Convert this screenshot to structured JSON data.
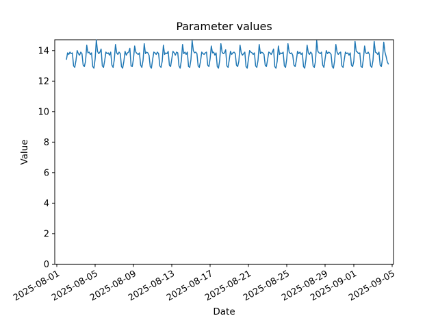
{
  "figure": {
    "title": "Parameter values",
    "xlabel": "Date",
    "ylabel": "Value",
    "background_color": "#ffffff"
  },
  "chart_data": {
    "type": "line",
    "title": "Parameter values",
    "xlabel": "Date",
    "ylabel": "Value",
    "grid": false,
    "legend": "none",
    "line_color": "#1f77b4",
    "line_width": 1.5,
    "ylim": [
      0,
      14.71
    ],
    "xlim_days_from_2025_08_01": [
      -0.214,
      35.143
    ],
    "yticks": [
      0,
      2,
      4,
      6,
      8,
      10,
      12,
      14
    ],
    "xticks": [
      {
        "day": 0,
        "label": "2025-08-01"
      },
      {
        "day": 4,
        "label": "2025-08-05"
      },
      {
        "day": 8,
        "label": "2025-08-09"
      },
      {
        "day": 12,
        "label": "2025-08-13"
      },
      {
        "day": 16,
        "label": "2025-08-17"
      },
      {
        "day": 20,
        "label": "2025-08-21"
      },
      {
        "day": 24,
        "label": "2025-08-25"
      },
      {
        "day": 28,
        "label": "2025-08-29"
      },
      {
        "day": 31,
        "label": "2025-09-01"
      },
      {
        "day": 35,
        "label": "2025-09-05"
      }
    ],
    "x_unit": "days since 2025-08-01",
    "x_start_day": 1.0,
    "x_step_days": 0.125,
    "values": [
      13.4,
      13.85,
      13.75,
      13.9,
      13.8,
      13.85,
      13.0,
      12.9,
      13.35,
      14.0,
      13.8,
      13.7,
      13.9,
      13.8,
      13.05,
      12.95,
      13.3,
      14.35,
      13.85,
      13.9,
      13.75,
      13.85,
      12.95,
      12.85,
      13.45,
      14.7,
      13.95,
      13.8,
      13.9,
      14.1,
      13.0,
      12.9,
      13.35,
      13.9,
      13.8,
      13.85,
      13.7,
      13.9,
      13.05,
      12.9,
      13.4,
      14.4,
      13.85,
      13.75,
      13.9,
      13.8,
      12.95,
      12.85,
      13.3,
      13.95,
      13.7,
      13.85,
      13.9,
      14.15,
      13.0,
      12.95,
      13.45,
      14.3,
      13.9,
      13.8,
      13.75,
      13.85,
      13.05,
      12.9,
      13.35,
      14.45,
      13.8,
      13.9,
      13.85,
      13.7,
      12.95,
      12.85,
      13.4,
      13.9,
      13.85,
      13.75,
      13.9,
      13.8,
      13.0,
      12.9,
      13.3,
      14.35,
      13.75,
      13.85,
      13.8,
      13.95,
      13.05,
      12.95,
      13.45,
      13.95,
      13.85,
      13.7,
      13.9,
      13.85,
      13.0,
      12.85,
      13.35,
      14.4,
      13.8,
      13.9,
      13.75,
      13.9,
      12.95,
      12.9,
      13.4,
      14.65,
      14.0,
      13.85,
      13.9,
      13.8,
      13.0,
      12.9,
      13.3,
      13.9,
      13.8,
      13.75,
      13.85,
      13.9,
      13.05,
      12.95,
      13.45,
      14.3,
      13.85,
      13.9,
      13.7,
      13.85,
      12.95,
      12.85,
      13.35,
      14.45,
      13.9,
      13.8,
      13.85,
      14.05,
      13.0,
      12.9,
      13.4,
      13.95,
      13.75,
      13.85,
      13.9,
      13.8,
      13.05,
      12.95,
      13.3,
      14.35,
      13.85,
      13.7,
      13.8,
      13.9,
      12.95,
      12.85,
      13.45,
      14.0,
      13.9,
      13.85,
      13.75,
      13.85,
      13.0,
      12.9,
      13.35,
      14.4,
      13.8,
      13.9,
      13.85,
      13.75,
      13.05,
      12.95,
      13.4,
      13.9,
      13.85,
      13.75,
      13.9,
      14.1,
      12.95,
      12.85,
      13.3,
      14.3,
      13.75,
      13.85,
      13.8,
      13.9,
      13.0,
      12.9,
      13.45,
      14.45,
      13.9,
      13.8,
      13.85,
      13.7,
      13.05,
      12.95,
      13.35,
      13.95,
      13.8,
      13.9,
      13.75,
      13.85,
      12.95,
      12.85,
      13.4,
      14.35,
      13.85,
      13.75,
      13.9,
      13.8,
      13.0,
      12.9,
      13.3,
      14.65,
      13.95,
      13.85,
      13.8,
      13.9,
      13.05,
      12.9,
      13.45,
      14.0,
      13.8,
      13.9,
      13.85,
      13.75,
      12.95,
      12.85,
      13.35,
      14.4,
      13.9,
      13.75,
      13.85,
      13.9,
      13.0,
      12.9,
      13.4,
      13.9,
      13.8,
      13.85,
      13.7,
      13.85,
      13.05,
      12.95,
      13.3,
      14.6,
      13.95,
      13.9,
      13.8,
      13.85,
      12.95,
      12.9,
      13.45,
      14.3,
      13.85,
      13.8,
      13.9,
      13.75,
      13.0,
      12.9,
      13.35,
      14.6,
      13.9,
      13.85,
      13.75,
      13.9,
      13.05,
      12.95,
      13.5,
      14.55,
      13.9,
      13.6,
      13.25,
      13.1
    ]
  }
}
